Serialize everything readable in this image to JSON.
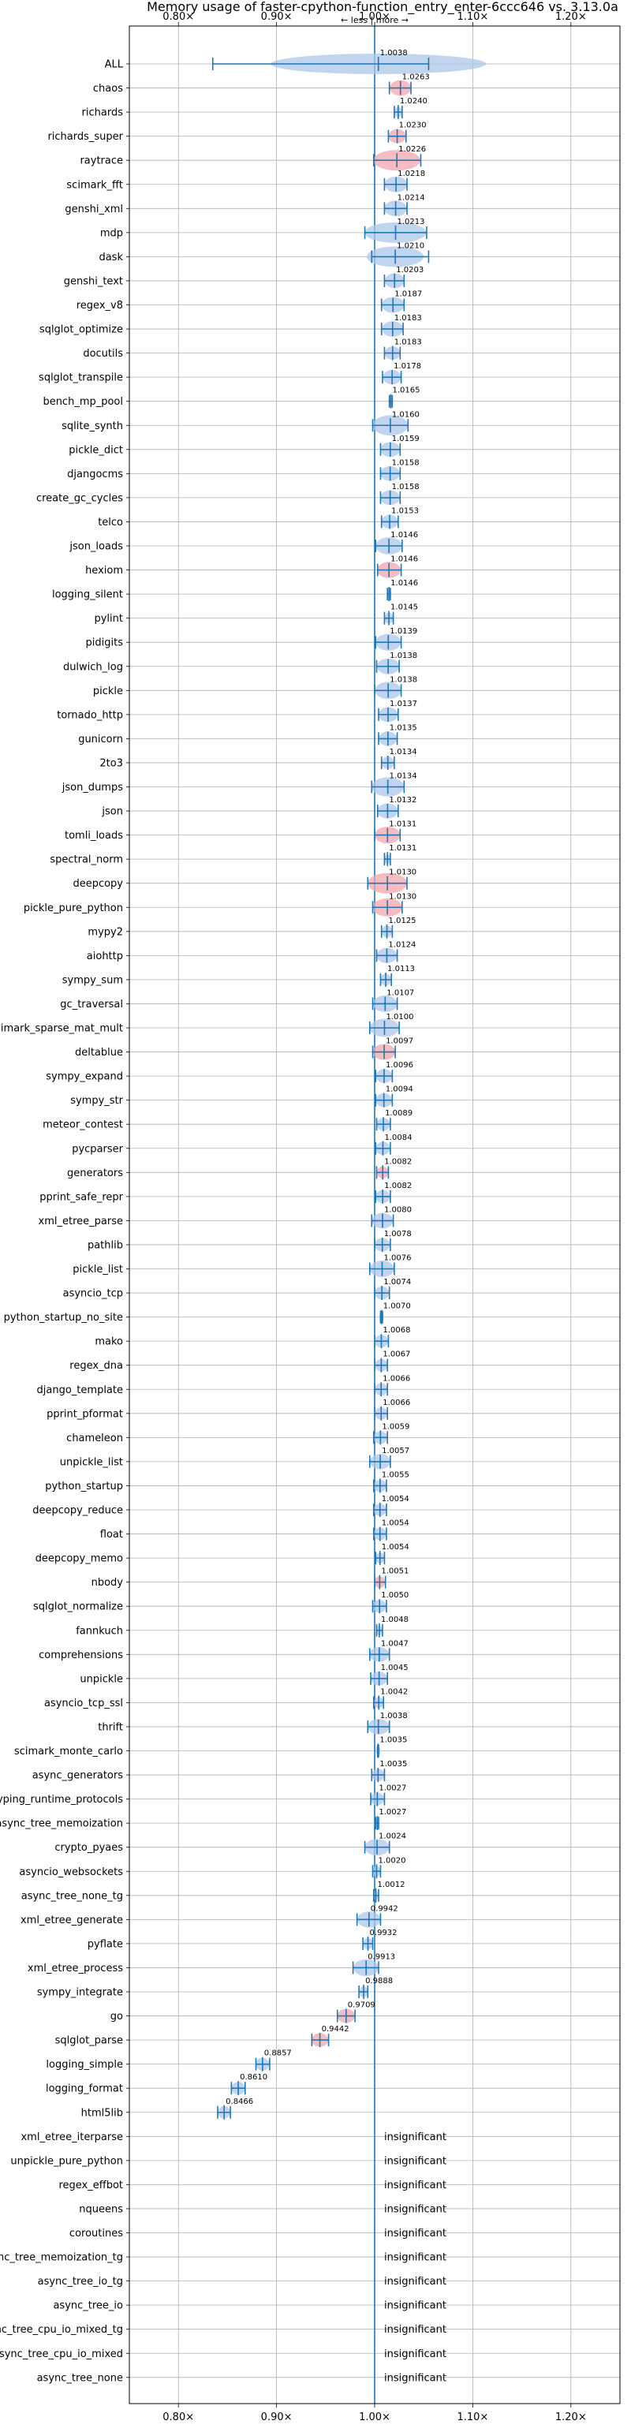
{
  "chart_data": {
    "type": "scatter",
    "title": "Memory usage of faster-cpython-function_entry_enter-6ccc646 vs. 3.13.0a",
    "direction_label": "← less | more →",
    "xlim": [
      0.75,
      1.25
    ],
    "x_ticks": [
      0.8,
      0.9,
      1.0,
      1.1,
      1.2
    ],
    "x_tick_labels": [
      "0.80×",
      "0.90×",
      "1.00×",
      "1.10×",
      "1.20×"
    ],
    "reference_line": 1.0,
    "grid": true,
    "insignificant_label": "insignificant",
    "colors": {
      "axis_line": "#1f77b4",
      "errorbar": "#1f77b4",
      "violin_normal": "#aec7e8",
      "violin_significant": "#f4a6ad",
      "grid": "#b0b0b0"
    },
    "benchmarks": [
      {
        "name": "ALL",
        "value": 1.0038,
        "label": "1.0038",
        "lo": 0.835,
        "hi": 1.055,
        "sig": false
      },
      {
        "name": "chaos",
        "value": 1.0263,
        "label": "1.0263",
        "lo": 1.015,
        "hi": 1.037,
        "sig": true
      },
      {
        "name": "richards",
        "value": 1.024,
        "label": "1.0240",
        "lo": 1.02,
        "hi": 1.028,
        "sig": false
      },
      {
        "name": "richards_super",
        "value": 1.023,
        "label": "1.0230",
        "lo": 1.014,
        "hi": 1.032,
        "sig": true
      },
      {
        "name": "raytrace",
        "value": 1.0226,
        "label": "1.0226",
        "lo": 0.999,
        "hi": 1.047,
        "sig": true
      },
      {
        "name": "scimark_fft",
        "value": 1.0218,
        "label": "1.0218",
        "lo": 1.01,
        "hi": 1.033,
        "sig": false
      },
      {
        "name": "genshi_xml",
        "value": 1.0214,
        "label": "1.0214",
        "lo": 1.01,
        "hi": 1.033,
        "sig": false
      },
      {
        "name": "mdp",
        "value": 1.0213,
        "label": "1.0213",
        "lo": 0.99,
        "hi": 1.053,
        "sig": false
      },
      {
        "name": "dask",
        "value": 1.021,
        "label": "1.0210",
        "lo": 0.997,
        "hi": 1.055,
        "sig": false
      },
      {
        "name": "genshi_text",
        "value": 1.0203,
        "label": "1.0203",
        "lo": 1.01,
        "hi": 1.03,
        "sig": false
      },
      {
        "name": "regex_v8",
        "value": 1.0187,
        "label": "1.0187",
        "lo": 1.007,
        "hi": 1.03,
        "sig": false
      },
      {
        "name": "sqlglot_optimize",
        "value": 1.0183,
        "label": "1.0183",
        "lo": 1.007,
        "hi": 1.029,
        "sig": false
      },
      {
        "name": "docutils",
        "value": 1.0183,
        "label": "1.0183",
        "lo": 1.01,
        "hi": 1.026,
        "sig": false
      },
      {
        "name": "sqlglot_transpile",
        "value": 1.0178,
        "label": "1.0178",
        "lo": 1.008,
        "hi": 1.027,
        "sig": false
      },
      {
        "name": "bench_mp_pool",
        "value": 1.0165,
        "label": "1.0165",
        "lo": 1.015,
        "hi": 1.018,
        "sig": false
      },
      {
        "name": "sqlite_synth",
        "value": 1.016,
        "label": "1.0160",
        "lo": 0.998,
        "hi": 1.034,
        "sig": false
      },
      {
        "name": "pickle_dict",
        "value": 1.0159,
        "label": "1.0159",
        "lo": 1.006,
        "hi": 1.026,
        "sig": false
      },
      {
        "name": "djangocms",
        "value": 1.0158,
        "label": "1.0158",
        "lo": 1.006,
        "hi": 1.026,
        "sig": false
      },
      {
        "name": "create_gc_cycles",
        "value": 1.0158,
        "label": "1.0158",
        "lo": 1.006,
        "hi": 1.026,
        "sig": false
      },
      {
        "name": "telco",
        "value": 1.0153,
        "label": "1.0153",
        "lo": 1.007,
        "hi": 1.024,
        "sig": false
      },
      {
        "name": "json_loads",
        "value": 1.0146,
        "label": "1.0146",
        "lo": 1.001,
        "hi": 1.028,
        "sig": false
      },
      {
        "name": "hexiom",
        "value": 1.0146,
        "label": "1.0146",
        "lo": 1.003,
        "hi": 1.027,
        "sig": true
      },
      {
        "name": "logging_silent",
        "value": 1.0146,
        "label": "1.0146",
        "lo": 1.013,
        "hi": 1.016,
        "sig": false
      },
      {
        "name": "pylint",
        "value": 1.0145,
        "label": "1.0145",
        "lo": 1.01,
        "hi": 1.019,
        "sig": false
      },
      {
        "name": "pidigits",
        "value": 1.0139,
        "label": "1.0139",
        "lo": 1.001,
        "hi": 1.027,
        "sig": false
      },
      {
        "name": "dulwich_log",
        "value": 1.0138,
        "label": "1.0138",
        "lo": 1.002,
        "hi": 1.025,
        "sig": false
      },
      {
        "name": "pickle",
        "value": 1.0138,
        "label": "1.0138",
        "lo": 1.0,
        "hi": 1.027,
        "sig": false
      },
      {
        "name": "tornado_http",
        "value": 1.0137,
        "label": "1.0137",
        "lo": 1.004,
        "hi": 1.024,
        "sig": false
      },
      {
        "name": "gunicorn",
        "value": 1.0135,
        "label": "1.0135",
        "lo": 1.004,
        "hi": 1.023,
        "sig": false
      },
      {
        "name": "2to3",
        "value": 1.0134,
        "label": "1.0134",
        "lo": 1.007,
        "hi": 1.02,
        "sig": false
      },
      {
        "name": "json_dumps",
        "value": 1.0134,
        "label": "1.0134",
        "lo": 0.997,
        "hi": 1.03,
        "sig": false
      },
      {
        "name": "json",
        "value": 1.0132,
        "label": "1.0132",
        "lo": 1.003,
        "hi": 1.024,
        "sig": false
      },
      {
        "name": "tomli_loads",
        "value": 1.0131,
        "label": "1.0131",
        "lo": 1.0,
        "hi": 1.026,
        "sig": true
      },
      {
        "name": "spectral_norm",
        "value": 1.0131,
        "label": "1.0131",
        "lo": 1.01,
        "hi": 1.016,
        "sig": false
      },
      {
        "name": "deepcopy",
        "value": 1.013,
        "label": "1.0130",
        "lo": 0.993,
        "hi": 1.033,
        "sig": true
      },
      {
        "name": "pickle_pure_python",
        "value": 1.013,
        "label": "1.0130",
        "lo": 0.998,
        "hi": 1.028,
        "sig": true
      },
      {
        "name": "mypy2",
        "value": 1.0125,
        "label": "1.0125",
        "lo": 1.007,
        "hi": 1.018,
        "sig": false
      },
      {
        "name": "aiohttp",
        "value": 1.0124,
        "label": "1.0124",
        "lo": 1.002,
        "hi": 1.023,
        "sig": false
      },
      {
        "name": "sympy_sum",
        "value": 1.0113,
        "label": "1.0113",
        "lo": 1.006,
        "hi": 1.017,
        "sig": false
      },
      {
        "name": "gc_traversal",
        "value": 1.0107,
        "label": "1.0107",
        "lo": 0.998,
        "hi": 1.023,
        "sig": false
      },
      {
        "name": "scimark_sparse_mat_mult",
        "value": 1.01,
        "label": "1.0100",
        "lo": 0.995,
        "hi": 1.025,
        "sig": false
      },
      {
        "name": "deltablue",
        "value": 1.0097,
        "label": "1.0097",
        "lo": 0.998,
        "hi": 1.021,
        "sig": true
      },
      {
        "name": "sympy_expand",
        "value": 1.0096,
        "label": "1.0096",
        "lo": 1.001,
        "hi": 1.018,
        "sig": false
      },
      {
        "name": "sympy_str",
        "value": 1.0094,
        "label": "1.0094",
        "lo": 1.001,
        "hi": 1.018,
        "sig": false
      },
      {
        "name": "meteor_contest",
        "value": 1.0089,
        "label": "1.0089",
        "lo": 1.002,
        "hi": 1.016,
        "sig": false
      },
      {
        "name": "pycparser",
        "value": 1.0084,
        "label": "1.0084",
        "lo": 1.001,
        "hi": 1.016,
        "sig": false
      },
      {
        "name": "generators",
        "value": 1.0082,
        "label": "1.0082",
        "lo": 1.002,
        "hi": 1.014,
        "sig": true
      },
      {
        "name": "pprint_safe_repr",
        "value": 1.0082,
        "label": "1.0082",
        "lo": 1.001,
        "hi": 1.016,
        "sig": false
      },
      {
        "name": "xml_etree_parse",
        "value": 1.008,
        "label": "1.0080",
        "lo": 0.997,
        "hi": 1.019,
        "sig": false
      },
      {
        "name": "pathlib",
        "value": 1.0078,
        "label": "1.0078",
        "lo": 1.0,
        "hi": 1.016,
        "sig": false
      },
      {
        "name": "pickle_list",
        "value": 1.0076,
        "label": "1.0076",
        "lo": 0.995,
        "hi": 1.02,
        "sig": false
      },
      {
        "name": "asyncio_tcp",
        "value": 1.0074,
        "label": "1.0074",
        "lo": 1.0,
        "hi": 1.015,
        "sig": false
      },
      {
        "name": "python_startup_no_site",
        "value": 1.007,
        "label": "1.0070",
        "lo": 1.006,
        "hi": 1.008,
        "sig": false
      },
      {
        "name": "mako",
        "value": 1.0068,
        "label": "1.0068",
        "lo": 1.0,
        "hi": 1.014,
        "sig": false
      },
      {
        "name": "regex_dna",
        "value": 1.0067,
        "label": "1.0067",
        "lo": 1.0,
        "hi": 1.013,
        "sig": false
      },
      {
        "name": "django_template",
        "value": 1.0066,
        "label": "1.0066",
        "lo": 1.0,
        "hi": 1.013,
        "sig": false
      },
      {
        "name": "pprint_pformat",
        "value": 1.0066,
        "label": "1.0066",
        "lo": 1.0,
        "hi": 1.013,
        "sig": false
      },
      {
        "name": "chameleon",
        "value": 1.0059,
        "label": "1.0059",
        "lo": 0.999,
        "hi": 1.013,
        "sig": false
      },
      {
        "name": "unpickle_list",
        "value": 1.0057,
        "label": "1.0057",
        "lo": 0.995,
        "hi": 1.016,
        "sig": false
      },
      {
        "name": "python_startup",
        "value": 1.0055,
        "label": "1.0055",
        "lo": 0.999,
        "hi": 1.012,
        "sig": false
      },
      {
        "name": "deepcopy_reduce",
        "value": 1.0054,
        "label": "1.0054",
        "lo": 0.999,
        "hi": 1.012,
        "sig": false
      },
      {
        "name": "float",
        "value": 1.0054,
        "label": "1.0054",
        "lo": 0.999,
        "hi": 1.012,
        "sig": false
      },
      {
        "name": "deepcopy_memo",
        "value": 1.0054,
        "label": "1.0054",
        "lo": 1.001,
        "hi": 1.01,
        "sig": false
      },
      {
        "name": "nbody",
        "value": 1.0051,
        "label": "1.0051",
        "lo": 1.0,
        "hi": 1.011,
        "sig": true
      },
      {
        "name": "sqlglot_normalize",
        "value": 1.005,
        "label": "1.0050",
        "lo": 0.998,
        "hi": 1.012,
        "sig": false
      },
      {
        "name": "fannkuch",
        "value": 1.0048,
        "label": "1.0048",
        "lo": 1.002,
        "hi": 1.008,
        "sig": false
      },
      {
        "name": "comprehensions",
        "value": 1.0047,
        "label": "1.0047",
        "lo": 0.995,
        "hi": 1.015,
        "sig": false
      },
      {
        "name": "unpickle",
        "value": 1.0045,
        "label": "1.0045",
        "lo": 0.996,
        "hi": 1.013,
        "sig": false
      },
      {
        "name": "asyncio_tcp_ssl",
        "value": 1.0042,
        "label": "1.0042",
        "lo": 0.999,
        "hi": 1.009,
        "sig": false
      },
      {
        "name": "thrift",
        "value": 1.0038,
        "label": "1.0038",
        "lo": 0.993,
        "hi": 1.015,
        "sig": false
      },
      {
        "name": "scimark_monte_carlo",
        "value": 1.0035,
        "label": "1.0035",
        "lo": 1.003,
        "hi": 1.004,
        "sig": false
      },
      {
        "name": "async_generators",
        "value": 1.0035,
        "label": "1.0035",
        "lo": 0.997,
        "hi": 1.01,
        "sig": false
      },
      {
        "name": "typing_runtime_protocols",
        "value": 1.0027,
        "label": "1.0027",
        "lo": 0.996,
        "hi": 1.01,
        "sig": false
      },
      {
        "name": "async_tree_memoization",
        "value": 1.0027,
        "label": "1.0027",
        "lo": 1.001,
        "hi": 1.004,
        "sig": false
      },
      {
        "name": "crypto_pyaes",
        "value": 1.0024,
        "label": "1.0024",
        "lo": 0.99,
        "hi": 1.015,
        "sig": false
      },
      {
        "name": "asyncio_websockets",
        "value": 1.002,
        "label": "1.0020",
        "lo": 0.998,
        "hi": 1.006,
        "sig": false
      },
      {
        "name": "async_tree_none_tg",
        "value": 1.0012,
        "label": "1.0012",
        "lo": 0.999,
        "hi": 1.004,
        "sig": false
      },
      {
        "name": "xml_etree_generate",
        "value": 0.9942,
        "label": "0.9942",
        "lo": 0.982,
        "hi": 1.006,
        "sig": false
      },
      {
        "name": "pyflate",
        "value": 0.9932,
        "label": "0.9932",
        "lo": 0.988,
        "hi": 0.998,
        "sig": false
      },
      {
        "name": "xml_etree_process",
        "value": 0.9913,
        "label": "0.9913",
        "lo": 0.978,
        "hi": 1.004,
        "sig": false
      },
      {
        "name": "sympy_integrate",
        "value": 0.9888,
        "label": "0.9888",
        "lo": 0.984,
        "hi": 0.993,
        "sig": false
      },
      {
        "name": "go",
        "value": 0.9709,
        "label": "0.9709",
        "lo": 0.962,
        "hi": 0.98,
        "sig": true
      },
      {
        "name": "sqlglot_parse",
        "value": 0.9442,
        "label": "0.9442",
        "lo": 0.936,
        "hi": 0.953,
        "sig": true
      },
      {
        "name": "logging_simple",
        "value": 0.8857,
        "label": "0.8857",
        "lo": 0.879,
        "hi": 0.893,
        "sig": false
      },
      {
        "name": "logging_format",
        "value": 0.861,
        "label": "0.8610",
        "lo": 0.854,
        "hi": 0.868,
        "sig": false
      },
      {
        "name": "html5lib",
        "value": 0.8466,
        "label": "0.8466",
        "lo": 0.84,
        "hi": 0.853,
        "sig": false
      },
      {
        "name": "xml_etree_iterparse",
        "value": null,
        "label": "",
        "lo": null,
        "hi": null,
        "sig": false
      },
      {
        "name": "unpickle_pure_python",
        "value": null,
        "label": "",
        "lo": null,
        "hi": null,
        "sig": false
      },
      {
        "name": "regex_effbot",
        "value": null,
        "label": "",
        "lo": null,
        "hi": null,
        "sig": false
      },
      {
        "name": "nqueens",
        "value": null,
        "label": "",
        "lo": null,
        "hi": null,
        "sig": false
      },
      {
        "name": "coroutines",
        "value": null,
        "label": "",
        "lo": null,
        "hi": null,
        "sig": false
      },
      {
        "name": "async_tree_memoization_tg",
        "value": null,
        "label": "",
        "lo": null,
        "hi": null,
        "sig": false
      },
      {
        "name": "async_tree_io_tg",
        "value": null,
        "label": "",
        "lo": null,
        "hi": null,
        "sig": false
      },
      {
        "name": "async_tree_io",
        "value": null,
        "label": "",
        "lo": null,
        "hi": null,
        "sig": false
      },
      {
        "name": "async_tree_cpu_io_mixed_tg",
        "value": null,
        "label": "",
        "lo": null,
        "hi": null,
        "sig": false
      },
      {
        "name": "async_tree_cpu_io_mixed",
        "value": null,
        "label": "",
        "lo": null,
        "hi": null,
        "sig": false
      },
      {
        "name": "async_tree_none",
        "value": null,
        "label": "",
        "lo": null,
        "hi": null,
        "sig": false
      }
    ]
  }
}
